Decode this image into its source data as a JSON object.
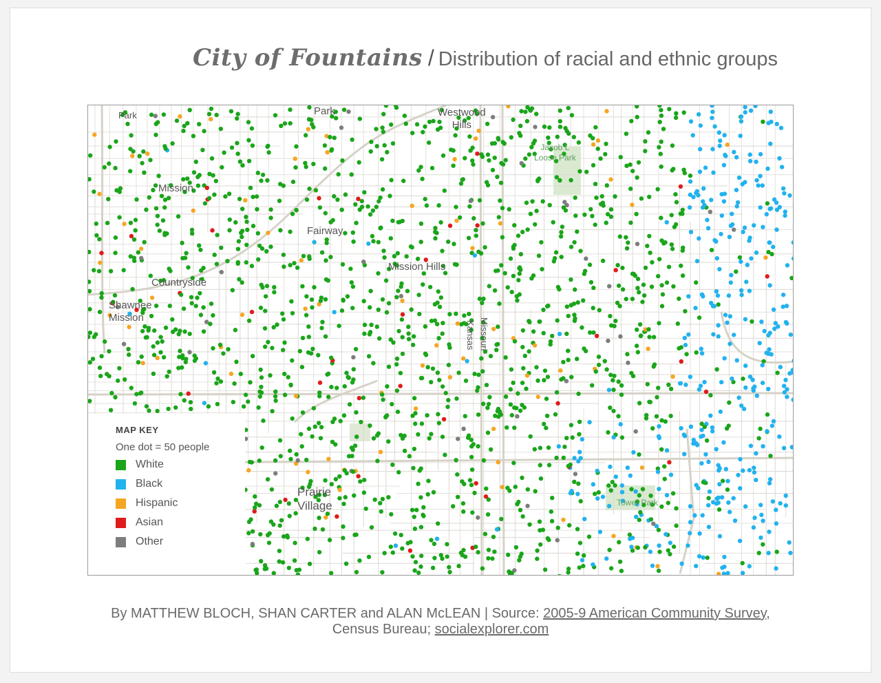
{
  "header": {
    "brand": "City of Fountains",
    "separator": "/",
    "subtitle": "Distribution of racial and ethnic groups"
  },
  "map": {
    "places": {
      "park_top_left": "Park",
      "park_top": "Park",
      "westwood_hills": "Westwood\nHills",
      "mission": "Mission",
      "fairway": "Fairway",
      "mission_hills": "Mission Hills",
      "countryside": "Countryside",
      "shawnee_mission": "Shawnee\nMission",
      "prairie_village": "Prairie\nVillage",
      "land": "land"
    },
    "parks": {
      "loose_park": "Jacob L\nLoose Park",
      "tower_park": "Tower Park"
    },
    "roads": {
      "kansas": "Kansas",
      "missouri": "Missouri"
    },
    "key": {
      "title": "MAP KEY",
      "scale": "One dot = 50 people",
      "items": [
        {
          "label": "White",
          "color": "#1aa51a"
        },
        {
          "label": "Black",
          "color": "#22b2ee"
        },
        {
          "label": "Hispanic",
          "color": "#f5a623"
        },
        {
          "label": "Asian",
          "color": "#e01b1b"
        },
        {
          "label": "Other",
          "color": "#7d7d7d"
        }
      ]
    }
  },
  "credit": {
    "byline": "By MATTHEW BLOCH, SHAN CARTER and ALAN McLEAN | Source: ",
    "source_link": "2005-9 American Community Survey",
    "after_source": ", Census Bureau; ",
    "site_link": "socialexplorer.com"
  }
}
